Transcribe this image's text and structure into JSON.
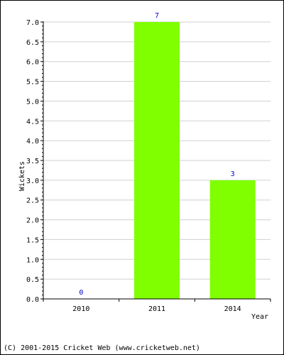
{
  "chart_data": {
    "type": "bar",
    "categories": [
      "2010",
      "2011",
      "2014"
    ],
    "values": [
      0,
      7,
      3
    ],
    "data_labels": [
      "0",
      "7",
      "3"
    ],
    "xlabel": "Year",
    "ylabel": "Wickets",
    "ylim": [
      0,
      7.0
    ],
    "ytick_step": 0.5,
    "grid": true,
    "bar_color": "#80ff00",
    "label_color": "#0000cc"
  },
  "footer": "(C) 2001-2015 Cricket Web (www.cricketweb.net)"
}
